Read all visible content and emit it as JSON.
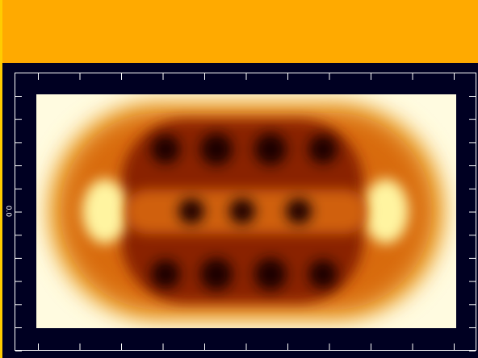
{
  "axis": {
    "left_label": "0.0"
  }
}
